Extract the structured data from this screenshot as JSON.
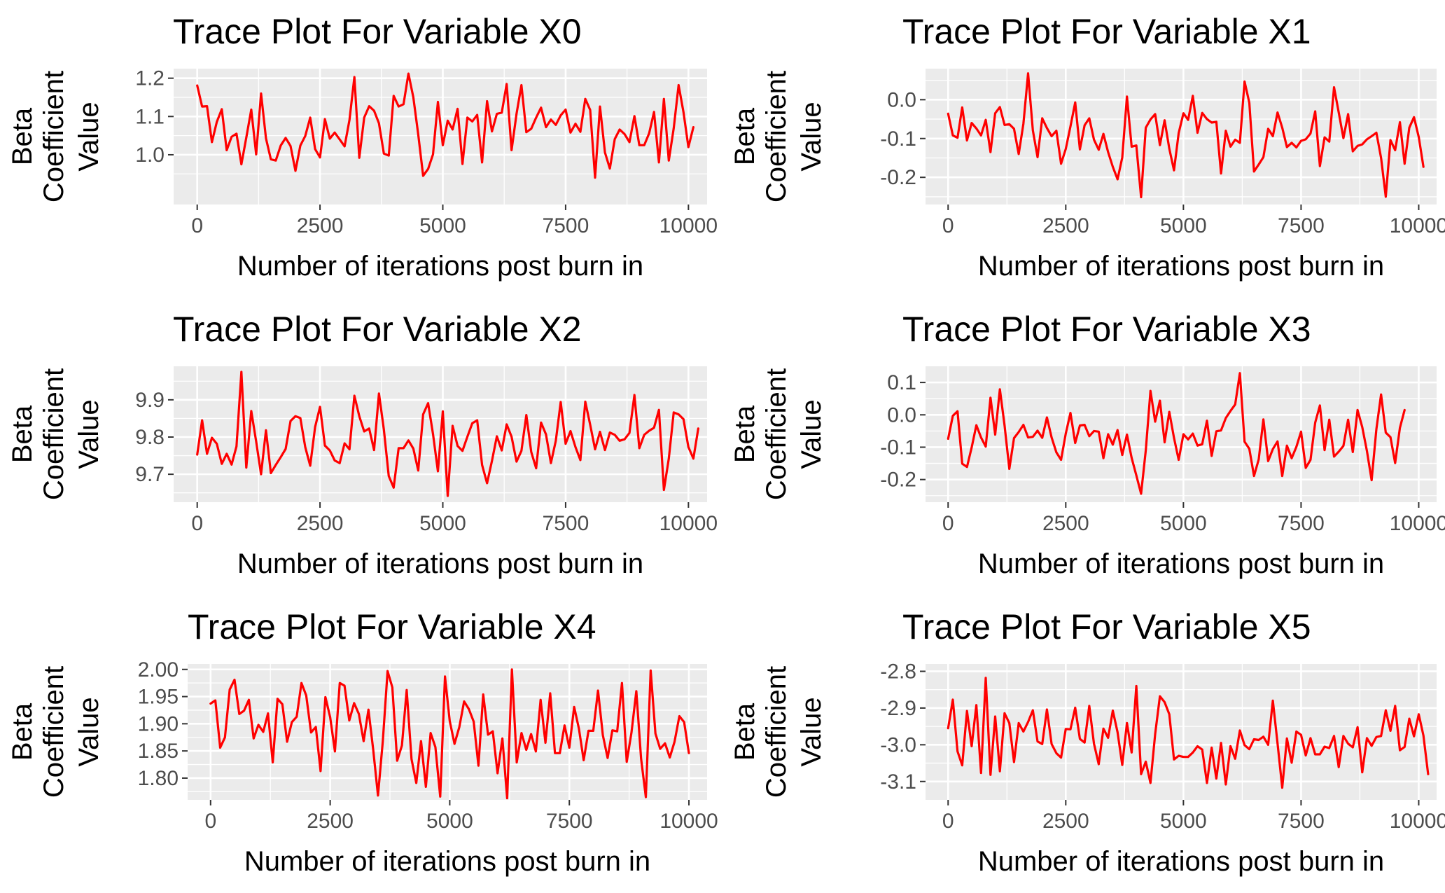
{
  "chart_data": [
    {
      "type": "line",
      "title": "Trace Plot For Variable X0",
      "xlabel": "Number of iterations post burn in",
      "ylabel": [
        "Beta",
        "Coefficient",
        "Value"
      ],
      "xlim": [
        -480,
        10380
      ],
      "ylim": [
        0.87,
        1.225
      ],
      "xticks": [
        0,
        2500,
        5000,
        7500,
        10000
      ],
      "xtick_labels": [
        "0",
        "2500",
        "5000",
        "7500",
        "10000"
      ],
      "yticks": [
        1.0,
        1.1,
        1.2
      ],
      "ytick_labels": [
        "1.0",
        "1.1",
        "1.2"
      ],
      "series": [
        {
          "color": "#ff0000",
          "x_start": 0,
          "x_step": 100,
          "y": [
            1.181,
            1.126,
            1.127,
            1.033,
            1.086,
            1.119,
            1.012,
            1.047,
            1.055,
            0.975,
            1.045,
            1.118,
            1.001,
            1.16,
            1.043,
            0.988,
            0.985,
            1.024,
            1.044,
            1.023,
            0.958,
            1.024,
            1.049,
            1.097,
            1.015,
            0.993,
            1.093,
            1.042,
            1.058,
            1.04,
            1.022,
            1.091,
            1.203,
            0.992,
            1.097,
            1.127,
            1.115,
            1.082,
            1.003,
            0.998,
            1.154,
            1.126,
            1.132,
            1.212,
            1.15,
            1.053,
            0.945,
            0.963,
            1.001,
            1.138,
            1.025,
            1.089,
            1.066,
            1.12,
            0.976,
            1.097,
            1.087,
            1.104,
            0.98,
            1.14,
            1.061,
            1.107,
            1.11,
            1.185,
            1.012,
            1.107,
            1.182,
            1.059,
            1.068,
            1.097,
            1.123,
            1.072,
            1.092,
            1.078,
            1.103,
            1.118,
            1.058,
            1.081,
            1.06,
            1.146,
            1.117,
            0.94,
            1.126,
            1.006,
            0.964,
            1.041,
            1.066,
            1.054,
            1.033,
            1.101,
            1.025,
            1.025,
            1.056,
            1.112,
            0.98,
            1.146,
            0.985,
            1.069,
            1.182,
            1.111,
            1.02,
            1.072
          ]
        }
      ]
    },
    {
      "type": "line",
      "title": "Trace Plot For Variable X1",
      "xlabel": "Number of iterations post burn in",
      "ylabel": [
        "Beta",
        "Coefficient",
        "Value"
      ],
      "xlim": [
        -480,
        10380
      ],
      "ylim": [
        -0.27,
        0.08
      ],
      "xticks": [
        0,
        2500,
        5000,
        7500,
        10000
      ],
      "xtick_labels": [
        "0",
        "2500",
        "5000",
        "7500",
        "10000"
      ],
      "yticks": [
        -0.2,
        -0.1,
        0.0
      ],
      "ytick_labels": [
        "-0.2",
        "-0.1",
        "0.0"
      ],
      "series": [
        {
          "color": "#ff0000",
          "x_start": 0,
          "x_step": 100,
          "y": [
            -0.036,
            -0.092,
            -0.098,
            -0.02,
            -0.105,
            -0.06,
            -0.074,
            -0.092,
            -0.052,
            -0.135,
            -0.035,
            -0.019,
            -0.065,
            -0.063,
            -0.075,
            -0.14,
            -0.062,
            0.068,
            -0.079,
            -0.148,
            -0.048,
            -0.073,
            -0.094,
            -0.08,
            -0.165,
            -0.127,
            -0.069,
            -0.007,
            -0.128,
            -0.066,
            -0.048,
            -0.103,
            -0.129,
            -0.088,
            -0.135,
            -0.173,
            -0.205,
            -0.149,
            0.008,
            -0.121,
            -0.118,
            -0.251,
            -0.072,
            -0.051,
            -0.037,
            -0.117,
            -0.053,
            -0.126,
            -0.182,
            -0.086,
            -0.035,
            -0.052,
            0.01,
            -0.085,
            -0.034,
            -0.05,
            -0.059,
            -0.057,
            -0.19,
            -0.08,
            -0.121,
            -0.103,
            -0.111,
            0.047,
            -0.008,
            -0.185,
            -0.167,
            -0.148,
            -0.075,
            -0.094,
            -0.033,
            -0.072,
            -0.122,
            -0.111,
            -0.123,
            -0.106,
            -0.102,
            -0.087,
            -0.03,
            -0.171,
            -0.097,
            -0.108,
            0.032,
            -0.033,
            -0.099,
            -0.037,
            -0.133,
            -0.119,
            -0.115,
            -0.102,
            -0.094,
            -0.085,
            -0.15,
            -0.25,
            -0.104,
            -0.13,
            -0.058,
            -0.165,
            -0.072,
            -0.045,
            -0.096,
            -0.173
          ]
        }
      ]
    },
    {
      "type": "line",
      "title": "Trace Plot For Variable X2",
      "xlabel": "Number of iterations post burn in",
      "ylabel": [
        "Beta",
        "Coefficient",
        "Value"
      ],
      "xlim": [
        -480,
        10380
      ],
      "ylim": [
        9.625,
        9.99
      ],
      "xticks": [
        0,
        2500,
        5000,
        7500,
        10000
      ],
      "xtick_labels": [
        "0",
        "2500",
        "5000",
        "7500",
        "10000"
      ],
      "yticks": [
        9.7,
        9.8,
        9.9
      ],
      "ytick_labels": [
        "9.7",
        "9.8",
        "9.9"
      ],
      "series": [
        {
          "color": "#ff0000",
          "x_start": 0,
          "x_step": 100,
          "y": [
            9.753,
            9.845,
            9.755,
            9.798,
            9.782,
            9.728,
            9.755,
            9.726,
            9.775,
            9.975,
            9.718,
            9.87,
            9.788,
            9.7,
            9.818,
            9.703,
            9.725,
            9.746,
            9.768,
            9.843,
            9.856,
            9.851,
            9.773,
            9.723,
            9.827,
            9.881,
            9.777,
            9.764,
            9.737,
            9.73,
            9.783,
            9.767,
            9.911,
            9.856,
            9.815,
            9.823,
            9.765,
            9.917,
            9.82,
            9.695,
            9.664,
            9.77,
            9.77,
            9.791,
            9.769,
            9.71,
            9.861,
            9.891,
            9.808,
            9.708,
            9.869,
            9.642,
            9.83,
            9.776,
            9.763,
            9.801,
            9.837,
            9.845,
            9.725,
            9.676,
            9.736,
            9.802,
            9.764,
            9.834,
            9.801,
            9.734,
            9.763,
            9.859,
            9.76,
            9.716,
            9.839,
            9.807,
            9.73,
            9.79,
            9.894,
            9.782,
            9.816,
            9.773,
            9.738,
            9.895,
            9.833,
            9.767,
            9.814,
            9.765,
            9.812,
            9.806,
            9.79,
            9.794,
            9.811,
            9.913,
            9.77,
            9.806,
            9.817,
            9.825,
            9.873,
            9.658,
            9.742,
            9.866,
            9.861,
            9.848,
            9.773,
            9.742,
            9.823
          ]
        }
      ]
    },
    {
      "type": "line",
      "title": "Trace Plot For Variable X3",
      "xlabel": "Number of iterations post burn in",
      "ylabel": [
        "Beta",
        "Coefficient",
        "Value"
      ],
      "xlim": [
        -480,
        10380
      ],
      "ylim": [
        -0.27,
        0.15
      ],
      "xticks": [
        0,
        2500,
        5000,
        7500,
        10000
      ],
      "xtick_labels": [
        "0",
        "2500",
        "5000",
        "7500",
        "10000"
      ],
      "yticks": [
        -0.2,
        -0.1,
        0.0,
        0.1
      ],
      "ytick_labels": [
        "-0.2",
        "-0.1",
        "0.0",
        "0.1"
      ],
      "series": [
        {
          "color": "#ff0000",
          "x_start": 0,
          "x_step": 100,
          "y": [
            -0.074,
            -0.003,
            0.011,
            -0.151,
            -0.161,
            -0.101,
            -0.032,
            -0.07,
            -0.098,
            0.053,
            -0.061,
            0.079,
            -0.033,
            -0.167,
            -0.072,
            -0.053,
            -0.031,
            -0.07,
            -0.068,
            -0.049,
            -0.071,
            -0.008,
            -0.07,
            -0.116,
            -0.139,
            -0.058,
            0.006,
            -0.087,
            -0.033,
            -0.031,
            -0.066,
            -0.05,
            -0.052,
            -0.134,
            -0.06,
            -0.092,
            -0.047,
            -0.124,
            -0.061,
            -0.133,
            -0.187,
            -0.244,
            -0.11,
            0.074,
            -0.021,
            0.044,
            -0.085,
            0.009,
            -0.071,
            -0.139,
            -0.06,
            -0.076,
            -0.058,
            -0.095,
            -0.091,
            -0.018,
            -0.127,
            -0.051,
            -0.048,
            -0.01,
            0.012,
            0.032,
            0.129,
            -0.083,
            -0.105,
            -0.189,
            -0.138,
            -0.014,
            -0.143,
            -0.106,
            -0.082,
            -0.189,
            -0.095,
            -0.134,
            -0.099,
            -0.052,
            -0.164,
            -0.139,
            -0.024,
            0.029,
            -0.109,
            -0.015,
            -0.129,
            -0.114,
            -0.096,
            -0.015,
            -0.115,
            0.015,
            -0.038,
            -0.112,
            -0.202,
            -0.044,
            0.063,
            -0.055,
            -0.069,
            -0.149,
            -0.04,
            0.015
          ]
        }
      ]
    },
    {
      "type": "line",
      "title": "Trace Plot For Variable X4",
      "xlabel": "Number of iterations post burn in",
      "ylabel": [
        "Beta",
        "Coefficient",
        "Value"
      ],
      "xlim": [
        -480,
        10380
      ],
      "ylim": [
        1.76,
        2.01
      ],
      "xticks": [
        0,
        2500,
        5000,
        7500,
        10000
      ],
      "xtick_labels": [
        "0",
        "2500",
        "5000",
        "7500",
        "10000"
      ],
      "yticks": [
        1.8,
        1.85,
        1.9,
        1.95,
        2.0
      ],
      "ytick_labels": [
        "1.80",
        "1.85",
        "1.90",
        "1.95",
        "2.00"
      ],
      "series": [
        {
          "color": "#ff0000",
          "x_start": 0,
          "x_step": 100,
          "y": [
            1.937,
            1.943,
            1.856,
            1.875,
            1.963,
            1.981,
            1.918,
            1.924,
            1.944,
            1.873,
            1.898,
            1.885,
            1.919,
            1.829,
            1.946,
            1.936,
            1.867,
            1.903,
            1.913,
            1.975,
            1.952,
            1.884,
            1.894,
            1.813,
            1.949,
            1.912,
            1.849,
            1.975,
            1.97,
            1.906,
            1.938,
            1.918,
            1.868,
            1.926,
            1.852,
            1.768,
            1.868,
            1.997,
            1.967,
            1.832,
            1.86,
            1.962,
            1.835,
            1.791,
            1.868,
            1.784,
            1.883,
            1.857,
            1.766,
            1.987,
            1.905,
            1.863,
            1.894,
            1.941,
            1.927,
            1.904,
            1.823,
            1.954,
            1.88,
            1.886,
            1.809,
            1.873,
            1.763,
            2.0,
            1.829,
            1.883,
            1.852,
            1.881,
            1.849,
            1.944,
            1.865,
            1.956,
            1.846,
            1.846,
            1.897,
            1.856,
            1.931,
            1.891,
            1.833,
            1.887,
            1.887,
            1.961,
            1.879,
            1.837,
            1.888,
            1.886,
            1.975,
            1.83,
            1.884,
            1.96,
            1.836,
            1.765,
            1.998,
            1.882,
            1.854,
            1.864,
            1.838,
            1.867,
            1.914,
            1.903,
            1.846
          ]
        }
      ]
    },
    {
      "type": "line",
      "title": "Trace Plot For Variable X5",
      "xlabel": "Number of iterations post burn in",
      "ylabel": [
        "Beta",
        "Coefficient",
        "Value"
      ],
      "xlim": [
        -480,
        10380
      ],
      "ylim": [
        -3.15,
        -2.78
      ],
      "xticks": [
        0,
        2500,
        5000,
        7500,
        10000
      ],
      "xtick_labels": [
        "0",
        "2500",
        "5000",
        "7500",
        "10000"
      ],
      "yticks": [
        -3.1,
        -3.0,
        -2.9,
        -2.8
      ],
      "ytick_labels": [
        "-3.1",
        "-3.0",
        "-2.9",
        "-2.8"
      ],
      "series": [
        {
          "color": "#ff0000",
          "x_start": 0,
          "x_step": 100,
          "y": [
            -2.955,
            -2.877,
            -3.018,
            -3.056,
            -2.908,
            -3.004,
            -2.892,
            -3.077,
            -2.818,
            -3.082,
            -2.923,
            -3.072,
            -2.914,
            -2.941,
            -3.047,
            -2.941,
            -2.964,
            -2.938,
            -2.906,
            -2.991,
            -2.998,
            -2.904,
            -2.998,
            -3.023,
            -3.035,
            -2.957,
            -2.958,
            -2.899,
            -2.984,
            -2.994,
            -2.894,
            -2.997,
            -3.053,
            -2.956,
            -2.981,
            -2.907,
            -2.966,
            -3.055,
            -2.941,
            -3.021,
            -2.84,
            -3.08,
            -3.046,
            -3.104,
            -2.971,
            -2.868,
            -2.884,
            -2.917,
            -3.04,
            -3.03,
            -3.033,
            -3.033,
            -3.021,
            -3.004,
            -3.013,
            -3.104,
            -3.008,
            -3.092,
            -2.995,
            -3.108,
            -3.004,
            -3.038,
            -2.961,
            -3.001,
            -3.012,
            -2.985,
            -2.987,
            -2.978,
            -3.0,
            -2.88,
            -2.996,
            -3.117,
            -2.983,
            -3.049,
            -2.964,
            -2.973,
            -3.029,
            -2.982,
            -3.026,
            -3.026,
            -3.005,
            -3.009,
            -2.976,
            -3.061,
            -2.976,
            -2.997,
            -3.007,
            -2.952,
            -3.075,
            -2.982,
            -3.003,
            -2.979,
            -2.976,
            -2.906,
            -2.962,
            -2.894,
            -3.015,
            -3.006,
            -2.929,
            -2.977,
            -2.917,
            -2.975,
            -3.08
          ]
        }
      ]
    }
  ]
}
